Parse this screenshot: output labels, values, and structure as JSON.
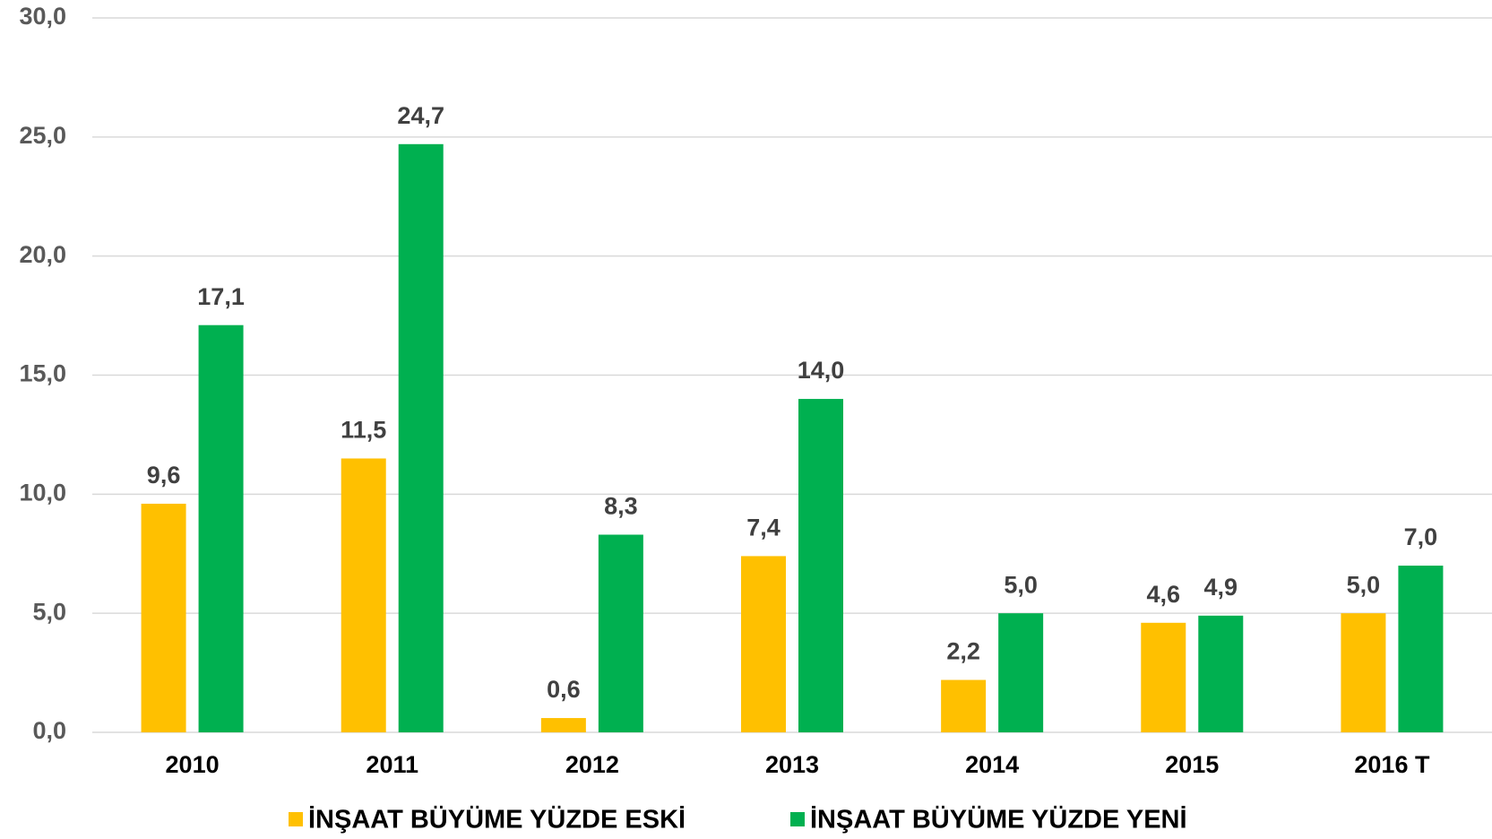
{
  "chart_data": {
    "type": "bar",
    "categories": [
      "2010",
      "2011",
      "2012",
      "2013",
      "2014",
      "2015",
      "2016 T"
    ],
    "series": [
      {
        "name": "İNŞAAT BÜYÜME YÜZDE ESKİ",
        "color": "#FFC000",
        "values": [
          9.6,
          11.5,
          0.6,
          7.4,
          2.2,
          4.6,
          5.0
        ],
        "value_labels": [
          "9,6",
          "11,5",
          "0,6",
          "7,4",
          "2,2",
          "4,6",
          "5,0"
        ]
      },
      {
        "name": "İNŞAAT BÜYÜME YÜZDE YENİ",
        "color": "#00B050",
        "values": [
          17.1,
          24.7,
          8.3,
          14.0,
          5.0,
          4.9,
          7.0
        ],
        "value_labels": [
          "17,1",
          "24,7",
          "8,3",
          "14,0",
          "5,0",
          "4,9",
          "7,0"
        ]
      }
    ],
    "ylim": [
      0,
      30
    ],
    "yticks": [
      {
        "value": 0,
        "label": "0,0"
      },
      {
        "value": 5,
        "label": "5,0"
      },
      {
        "value": 10,
        "label": "10,0"
      },
      {
        "value": 15,
        "label": "15,0"
      },
      {
        "value": 20,
        "label": "20,0"
      },
      {
        "value": 25,
        "label": "25,0"
      },
      {
        "value": 30,
        "label": "30,0"
      }
    ],
    "grid": true,
    "legend": "bottom"
  }
}
